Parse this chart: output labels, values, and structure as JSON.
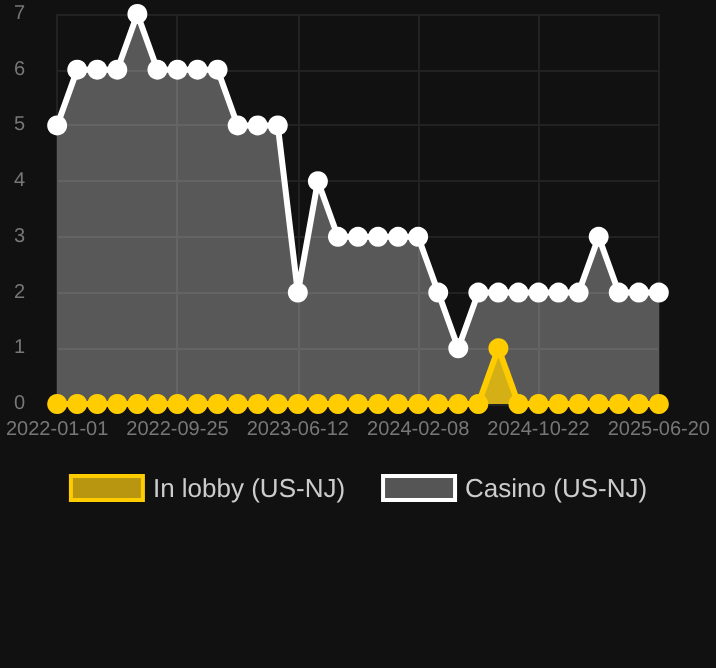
{
  "chart_data": {
    "type": "area",
    "categories": [
      "2022-01-01",
      null,
      null,
      null,
      null,
      null,
      "2022-09-25",
      null,
      null,
      null,
      null,
      null,
      "2023-06-12",
      null,
      null,
      null,
      null,
      null,
      "2024-02-08",
      null,
      null,
      null,
      null,
      null,
      "2024-10-22",
      null,
      null,
      null,
      null,
      null,
      "2025-06-20"
    ],
    "series": [
      {
        "name": "In lobby (US-NJ)",
        "color": "#ffcc00",
        "values": [
          0,
          0,
          0,
          0,
          0,
          0,
          0,
          0,
          0,
          0,
          0,
          0,
          0,
          0,
          0,
          0,
          0,
          0,
          0,
          0,
          0,
          0,
          1,
          0,
          0,
          0,
          0,
          0,
          0,
          0,
          0
        ]
      },
      {
        "name": "Casino (US-NJ)",
        "color": "#ffffff",
        "values": [
          5,
          6,
          6,
          6,
          7,
          6,
          6,
          6,
          6,
          5,
          5,
          5,
          2,
          4,
          3,
          3,
          3,
          3,
          3,
          2,
          1,
          2,
          2,
          2,
          2,
          2,
          2,
          3,
          2,
          2,
          2
        ]
      }
    ],
    "ylim": [
      0,
      7
    ],
    "yticks": [
      0,
      1,
      2,
      3,
      4,
      5,
      6,
      7
    ],
    "grid": true,
    "legend": "bottom",
    "marker": "circle",
    "line_style": "solid"
  }
}
